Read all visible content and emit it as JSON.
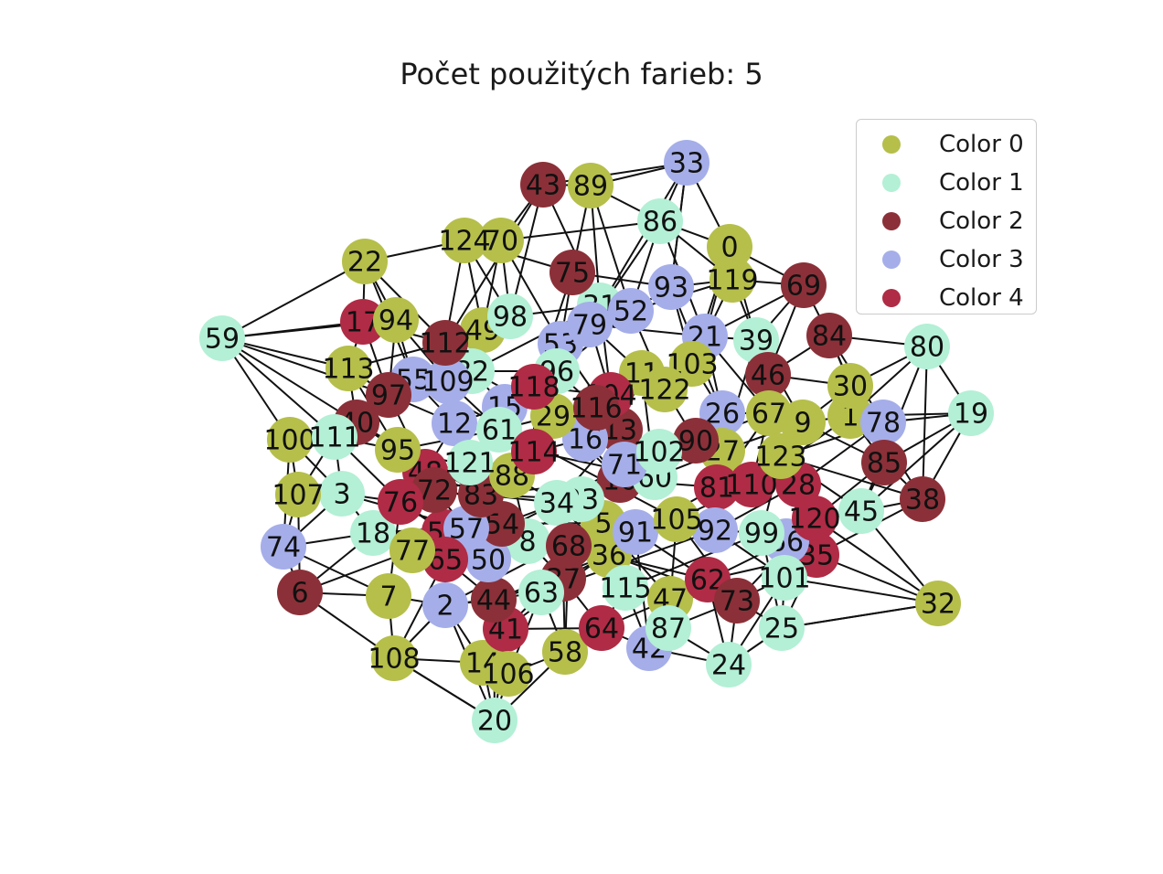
{
  "title": "Počet použitých farieb: 5",
  "palette": [
    "#b5bf4a",
    "#b3f0d6",
    "#8b3038",
    "#a5aee9",
    "#b02b45"
  ],
  "legend": [
    {
      "label": "Color 0",
      "color": 0
    },
    {
      "label": "Color 1",
      "color": 1
    },
    {
      "label": "Color 2",
      "color": 2
    },
    {
      "label": "Color 3",
      "color": 3
    },
    {
      "label": "Color 4",
      "color": 4
    }
  ],
  "nodes": [
    {
      "id": "0",
      "c": 0
    },
    {
      "id": "1",
      "c": 0
    },
    {
      "id": "2",
      "c": 3
    },
    {
      "id": "3",
      "c": 1
    },
    {
      "id": "5",
      "c": 0
    },
    {
      "id": "6",
      "c": 2
    },
    {
      "id": "7",
      "c": 0
    },
    {
      "id": "8",
      "c": 1
    },
    {
      "id": "9",
      "c": 0
    },
    {
      "id": "10",
      "c": 2
    },
    {
      "id": "11",
      "c": 0
    },
    {
      "id": "12",
      "c": 3
    },
    {
      "id": "13",
      "c": 2
    },
    {
      "id": "14",
      "c": 0
    },
    {
      "id": "15",
      "c": 3
    },
    {
      "id": "16",
      "c": 3
    },
    {
      "id": "17",
      "c": 4
    },
    {
      "id": "18",
      "c": 1
    },
    {
      "id": "19",
      "c": 1
    },
    {
      "id": "20",
      "c": 1
    },
    {
      "id": "21",
      "c": 3
    },
    {
      "id": "22",
      "c": 0
    },
    {
      "id": "23",
      "c": 1
    },
    {
      "id": "24",
      "c": 1
    },
    {
      "id": "25",
      "c": 1
    },
    {
      "id": "26",
      "c": 3
    },
    {
      "id": "27",
      "c": 0
    },
    {
      "id": "28",
      "c": 4
    },
    {
      "id": "29",
      "c": 0
    },
    {
      "id": "30",
      "c": 0
    },
    {
      "id": "31",
      "c": 1
    },
    {
      "id": "32",
      "c": 0
    },
    {
      "id": "33",
      "c": 3
    },
    {
      "id": "34",
      "c": 1
    },
    {
      "id": "35",
      "c": 4
    },
    {
      "id": "36",
      "c": 0
    },
    {
      "id": "37",
      "c": 2
    },
    {
      "id": "38",
      "c": 2
    },
    {
      "id": "39",
      "c": 1
    },
    {
      "id": "40",
      "c": 2
    },
    {
      "id": "41",
      "c": 4
    },
    {
      "id": "42",
      "c": 3
    },
    {
      "id": "43",
      "c": 2
    },
    {
      "id": "44",
      "c": 2
    },
    {
      "id": "45",
      "c": 1
    },
    {
      "id": "46",
      "c": 2
    },
    {
      "id": "47",
      "c": 0
    },
    {
      "id": "48",
      "c": 4
    },
    {
      "id": "49",
      "c": 0
    },
    {
      "id": "50",
      "c": 3
    },
    {
      "id": "52",
      "c": 3
    },
    {
      "id": "53",
      "c": 3
    },
    {
      "id": "54",
      "c": 2
    },
    {
      "id": "55",
      "c": 3
    },
    {
      "id": "56",
      "c": 4
    },
    {
      "id": "57",
      "c": 3
    },
    {
      "id": "58",
      "c": 0
    },
    {
      "id": "59",
      "c": 1
    },
    {
      "id": "60",
      "c": 1
    },
    {
      "id": "61",
      "c": 1
    },
    {
      "id": "62",
      "c": 4
    },
    {
      "id": "63",
      "c": 1
    },
    {
      "id": "64",
      "c": 4
    },
    {
      "id": "65",
      "c": 4
    },
    {
      "id": "66",
      "c": 3
    },
    {
      "id": "67",
      "c": 0
    },
    {
      "id": "68",
      "c": 2
    },
    {
      "id": "69",
      "c": 2
    },
    {
      "id": "70",
      "c": 0
    },
    {
      "id": "71",
      "c": 3
    },
    {
      "id": "72",
      "c": 2
    },
    {
      "id": "73",
      "c": 2
    },
    {
      "id": "74",
      "c": 3
    },
    {
      "id": "75",
      "c": 2
    },
    {
      "id": "76",
      "c": 4
    },
    {
      "id": "77",
      "c": 0
    },
    {
      "id": "78",
      "c": 3
    },
    {
      "id": "79",
      "c": 3
    },
    {
      "id": "80",
      "c": 1
    },
    {
      "id": "81",
      "c": 4
    },
    {
      "id": "82",
      "c": 1
    },
    {
      "id": "83",
      "c": 2
    },
    {
      "id": "84",
      "c": 2
    },
    {
      "id": "85",
      "c": 2
    },
    {
      "id": "86",
      "c": 1
    },
    {
      "id": "87",
      "c": 1
    },
    {
      "id": "88",
      "c": 0
    },
    {
      "id": "89",
      "c": 0
    },
    {
      "id": "90",
      "c": 2
    },
    {
      "id": "91",
      "c": 3
    },
    {
      "id": "92",
      "c": 3
    },
    {
      "id": "93",
      "c": 3
    },
    {
      "id": "94",
      "c": 0
    },
    {
      "id": "95",
      "c": 0
    },
    {
      "id": "96",
      "c": 1
    },
    {
      "id": "97",
      "c": 2
    },
    {
      "id": "98",
      "c": 1
    },
    {
      "id": "99",
      "c": 1
    },
    {
      "id": "100",
      "c": 0
    },
    {
      "id": "101",
      "c": 1
    },
    {
      "id": "102",
      "c": 1
    },
    {
      "id": "103",
      "c": 0
    },
    {
      "id": "104",
      "c": 4
    },
    {
      "id": "105",
      "c": 0
    },
    {
      "id": "106",
      "c": 0
    },
    {
      "id": "107",
      "c": 0
    },
    {
      "id": "108",
      "c": 0
    },
    {
      "id": "109",
      "c": 3
    },
    {
      "id": "110",
      "c": 4
    },
    {
      "id": "111",
      "c": 1
    },
    {
      "id": "112",
      "c": 2
    },
    {
      "id": "113",
      "c": 0
    },
    {
      "id": "114",
      "c": 4
    },
    {
      "id": "115",
      "c": 1
    },
    {
      "id": "116",
      "c": 2
    },
    {
      "id": "118",
      "c": 4
    },
    {
      "id": "119",
      "c": 0
    },
    {
      "id": "120",
      "c": 4
    },
    {
      "id": "121",
      "c": 1
    },
    {
      "id": "122",
      "c": 0
    },
    {
      "id": "123",
      "c": 0
    },
    {
      "id": "124",
      "c": 0
    }
  ],
  "edges": [
    [
      "59",
      "17"
    ],
    [
      "59",
      "113"
    ],
    [
      "59",
      "40"
    ],
    [
      "59",
      "111"
    ],
    [
      "59",
      "22"
    ],
    [
      "59",
      "94"
    ],
    [
      "59",
      "97"
    ],
    [
      "100",
      "111"
    ],
    [
      "100",
      "107"
    ],
    [
      "100",
      "3"
    ],
    [
      "107",
      "74"
    ],
    [
      "107",
      "3"
    ],
    [
      "74",
      "18"
    ],
    [
      "74",
      "6"
    ],
    [
      "74",
      "3"
    ],
    [
      "6",
      "7"
    ],
    [
      "6",
      "108"
    ],
    [
      "6",
      "18"
    ],
    [
      "7",
      "108"
    ],
    [
      "7",
      "2"
    ],
    [
      "108",
      "14"
    ],
    [
      "108",
      "20"
    ],
    [
      "108",
      "2"
    ],
    [
      "20",
      "106"
    ],
    [
      "20",
      "14"
    ],
    [
      "20",
      "58"
    ],
    [
      "20",
      "41"
    ],
    [
      "20",
      "44"
    ],
    [
      "14",
      "106"
    ],
    [
      "106",
      "58"
    ],
    [
      "58",
      "64"
    ],
    [
      "64",
      "42"
    ],
    [
      "42",
      "87"
    ],
    [
      "42",
      "24"
    ],
    [
      "87",
      "24"
    ],
    [
      "24",
      "25"
    ],
    [
      "25",
      "101"
    ],
    [
      "25",
      "32"
    ],
    [
      "101",
      "32"
    ],
    [
      "32",
      "45"
    ],
    [
      "32",
      "35"
    ],
    [
      "32",
      "120"
    ],
    [
      "45",
      "38"
    ],
    [
      "45",
      "19"
    ],
    [
      "38",
      "85"
    ],
    [
      "38",
      "19"
    ],
    [
      "19",
      "80"
    ],
    [
      "19",
      "78"
    ],
    [
      "19",
      "1"
    ],
    [
      "80",
      "84"
    ],
    [
      "80",
      "30"
    ],
    [
      "80",
      "1"
    ],
    [
      "69",
      "84"
    ],
    [
      "69",
      "119"
    ],
    [
      "69",
      "0"
    ],
    [
      "0",
      "33"
    ],
    [
      "0",
      "86"
    ],
    [
      "33",
      "89"
    ],
    [
      "33",
      "86"
    ],
    [
      "33",
      "93"
    ],
    [
      "33",
      "43"
    ],
    [
      "89",
      "43"
    ],
    [
      "89",
      "86"
    ],
    [
      "43",
      "70"
    ],
    [
      "70",
      "124"
    ],
    [
      "124",
      "22"
    ],
    [
      "124",
      "75"
    ],
    [
      "22",
      "94"
    ],
    [
      "22",
      "17"
    ],
    [
      "86",
      "119"
    ],
    [
      "86",
      "70"
    ],
    [
      "93",
      "119"
    ],
    [
      "93",
      "52"
    ],
    [
      "52",
      "31"
    ],
    [
      "31",
      "98"
    ],
    [
      "98",
      "49"
    ],
    [
      "49",
      "112"
    ],
    [
      "112",
      "17"
    ],
    [
      "112",
      "113"
    ],
    [
      "94",
      "55"
    ],
    [
      "55",
      "109"
    ],
    [
      "109",
      "82"
    ],
    [
      "82",
      "96"
    ],
    [
      "96",
      "53"
    ],
    [
      "53",
      "79"
    ],
    [
      "79",
      "21"
    ],
    [
      "21",
      "39"
    ],
    [
      "39",
      "46"
    ],
    [
      "46",
      "84"
    ],
    [
      "46",
      "30"
    ],
    [
      "30",
      "78"
    ],
    [
      "78",
      "85"
    ],
    [
      "85",
      "9"
    ],
    [
      "9",
      "67"
    ],
    [
      "67",
      "26"
    ],
    [
      "26",
      "103"
    ],
    [
      "103",
      "11"
    ],
    [
      "11",
      "122"
    ],
    [
      "122",
      "104"
    ],
    [
      "104",
      "118"
    ],
    [
      "118",
      "15"
    ],
    [
      "15",
      "12"
    ],
    [
      "12",
      "97"
    ],
    [
      "97",
      "40"
    ],
    [
      "40",
      "111"
    ],
    [
      "111",
      "3"
    ],
    [
      "3",
      "18"
    ],
    [
      "18",
      "77"
    ],
    [
      "77",
      "65"
    ],
    [
      "65",
      "2"
    ],
    [
      "2",
      "44"
    ],
    [
      "44",
      "41"
    ],
    [
      "41",
      "63"
    ],
    [
      "63",
      "37"
    ],
    [
      "37",
      "68"
    ],
    [
      "68",
      "36"
    ],
    [
      "36",
      "115"
    ],
    [
      "115",
      "47"
    ],
    [
      "47",
      "87"
    ],
    [
      "47",
      "62"
    ],
    [
      "62",
      "73"
    ],
    [
      "73",
      "101"
    ],
    [
      "73",
      "25"
    ],
    [
      "99",
      "66"
    ],
    [
      "66",
      "35"
    ],
    [
      "35",
      "120"
    ],
    [
      "120",
      "28"
    ],
    [
      "28",
      "110"
    ],
    [
      "110",
      "81"
    ],
    [
      "81",
      "27"
    ],
    [
      "27",
      "90"
    ],
    [
      "90",
      "102"
    ],
    [
      "102",
      "60"
    ],
    [
      "60",
      "71"
    ],
    [
      "71",
      "10"
    ],
    [
      "10",
      "16"
    ],
    [
      "16",
      "114"
    ],
    [
      "114",
      "88"
    ],
    [
      "88",
      "121"
    ],
    [
      "121",
      "48"
    ],
    [
      "48",
      "72"
    ],
    [
      "72",
      "76"
    ],
    [
      "76",
      "56"
    ],
    [
      "56",
      "57"
    ],
    [
      "57",
      "50"
    ],
    [
      "50",
      "8"
    ],
    [
      "8",
      "54"
    ],
    [
      "54",
      "83"
    ],
    [
      "83",
      "34"
    ],
    [
      "34",
      "23"
    ],
    [
      "23",
      "5"
    ],
    [
      "5",
      "91"
    ],
    [
      "91",
      "105"
    ],
    [
      "105",
      "55"
    ],
    [
      "105",
      "92"
    ],
    [
      "92",
      "99"
    ],
    [
      "99",
      "123"
    ],
    [
      "123",
      "45"
    ],
    [
      "113",
      "95"
    ],
    [
      "95",
      "61"
    ],
    [
      "61",
      "29"
    ],
    [
      "29",
      "116"
    ],
    [
      "116",
      "13"
    ],
    [
      "13",
      "11"
    ],
    [
      "13",
      "102"
    ],
    [
      "75",
      "93"
    ],
    [
      "75",
      "31"
    ],
    [
      "75",
      "53"
    ],
    [
      "86",
      "52"
    ],
    [
      "89",
      "75"
    ],
    [
      "43",
      "98"
    ],
    [
      "70",
      "49"
    ],
    [
      "124",
      "98"
    ],
    [
      "0",
      "21"
    ],
    [
      "119",
      "103"
    ],
    [
      "69",
      "46"
    ],
    [
      "84",
      "30"
    ],
    [
      "1",
      "9"
    ],
    [
      "1",
      "85"
    ],
    [
      "9",
      "123"
    ],
    [
      "67",
      "110"
    ],
    [
      "26",
      "90"
    ],
    [
      "21",
      "67"
    ],
    [
      "39",
      "9"
    ],
    [
      "46",
      "67"
    ],
    [
      "103",
      "122"
    ],
    [
      "11",
      "16"
    ],
    [
      "29",
      "104"
    ],
    [
      "118",
      "96"
    ],
    [
      "15",
      "61"
    ],
    [
      "12",
      "109"
    ],
    [
      "97",
      "55"
    ],
    [
      "40",
      "95"
    ],
    [
      "111",
      "95"
    ],
    [
      "3",
      "76"
    ],
    [
      "18",
      "56"
    ],
    [
      "77",
      "50"
    ],
    [
      "65",
      "44"
    ],
    [
      "2",
      "63"
    ],
    [
      "44",
      "37"
    ],
    [
      "41",
      "64"
    ],
    [
      "63",
      "58"
    ],
    [
      "37",
      "64"
    ],
    [
      "68",
      "115"
    ],
    [
      "36",
      "91"
    ],
    [
      "115",
      "42"
    ],
    [
      "47",
      "42"
    ],
    [
      "62",
      "24"
    ],
    [
      "73",
      "24"
    ],
    [
      "101",
      "66"
    ],
    [
      "25",
      "35"
    ],
    [
      "45",
      "120"
    ],
    [
      "38",
      "123"
    ],
    [
      "85",
      "45"
    ],
    [
      "78",
      "1"
    ],
    [
      "30",
      "9"
    ],
    [
      "80",
      "45"
    ],
    [
      "32",
      "25"
    ],
    [
      "20",
      "108"
    ],
    [
      "14",
      "41"
    ],
    [
      "106",
      "63"
    ],
    [
      "58",
      "68"
    ],
    [
      "64",
      "115"
    ],
    [
      "42",
      "91"
    ],
    [
      "87",
      "105"
    ],
    [
      "24",
      "101"
    ],
    [
      "6",
      "77"
    ],
    [
      "7",
      "76"
    ],
    [
      "108",
      "65"
    ],
    [
      "74",
      "100"
    ],
    [
      "107",
      "111"
    ],
    [
      "100",
      "40"
    ],
    [
      "59",
      "100"
    ],
    [
      "17",
      "113"
    ],
    [
      "113",
      "97"
    ],
    [
      "94",
      "109"
    ],
    [
      "22",
      "112"
    ],
    [
      "124",
      "112"
    ],
    [
      "70",
      "53"
    ],
    [
      "43",
      "31"
    ],
    [
      "89",
      "52"
    ],
    [
      "33",
      "79"
    ],
    [
      "86",
      "21"
    ],
    [
      "93",
      "103"
    ],
    [
      "52",
      "96"
    ],
    [
      "31",
      "82"
    ],
    [
      "98",
      "109"
    ],
    [
      "49",
      "55"
    ],
    [
      "112",
      "12"
    ],
    [
      "82",
      "15"
    ],
    [
      "96",
      "29"
    ],
    [
      "53",
      "118"
    ],
    [
      "79",
      "104"
    ],
    [
      "21",
      "26"
    ],
    [
      "39",
      "27"
    ],
    [
      "46",
      "28"
    ],
    [
      "84",
      "85"
    ],
    [
      "30",
      "38"
    ],
    [
      "78",
      "123"
    ],
    [
      "9",
      "110"
    ],
    [
      "67",
      "81"
    ],
    [
      "26",
      "102"
    ],
    [
      "103",
      "116"
    ],
    [
      "11",
      "60"
    ],
    [
      "122",
      "90"
    ],
    [
      "104",
      "16"
    ],
    [
      "118",
      "114"
    ],
    [
      "15",
      "121"
    ],
    [
      "12",
      "48"
    ],
    [
      "97",
      "72"
    ],
    [
      "40",
      "83"
    ],
    [
      "111",
      "76"
    ],
    [
      "3",
      "57"
    ],
    [
      "18",
      "54"
    ],
    [
      "77",
      "8"
    ],
    [
      "65",
      "34"
    ],
    [
      "2",
      "5"
    ],
    [
      "44",
      "36"
    ],
    [
      "41",
      "91"
    ],
    [
      "63",
      "92"
    ],
    [
      "37",
      "105"
    ],
    [
      "68",
      "62"
    ],
    [
      "36",
      "73"
    ],
    [
      "115",
      "99"
    ],
    [
      "47",
      "66"
    ],
    [
      "62",
      "35"
    ],
    [
      "73",
      "120"
    ],
    [
      "95",
      "88"
    ],
    [
      "61",
      "114"
    ],
    [
      "29",
      "10"
    ],
    [
      "116",
      "71"
    ],
    [
      "13",
      "34"
    ],
    [
      "57",
      "121"
    ],
    [
      "50",
      "23"
    ],
    [
      "8",
      "88"
    ],
    [
      "54",
      "10"
    ],
    [
      "83",
      "60"
    ],
    [
      "34",
      "71"
    ],
    [
      "23",
      "91"
    ],
    [
      "5",
      "105"
    ],
    [
      "91",
      "81"
    ],
    [
      "105",
      "110"
    ],
    [
      "92",
      "28"
    ],
    [
      "99",
      "45"
    ],
    [
      "55",
      "12"
    ],
    [
      "109",
      "61"
    ],
    [
      "82",
      "29"
    ],
    [
      "96",
      "116"
    ],
    [
      "53",
      "13"
    ],
    [
      "79",
      "11"
    ],
    [
      "52",
      "122"
    ],
    [
      "31",
      "104"
    ],
    [
      "75",
      "118"
    ],
    [
      "93",
      "26"
    ],
    [
      "119",
      "39"
    ],
    [
      "0",
      "103"
    ],
    [
      "69",
      "39"
    ],
    [
      "14",
      "2"
    ],
    [
      "106",
      "44"
    ],
    [
      "20",
      "2"
    ],
    [
      "58",
      "37"
    ],
    [
      "64",
      "47"
    ],
    [
      "42",
      "62"
    ],
    [
      "87",
      "73"
    ],
    [
      "25",
      "99"
    ],
    [
      "101",
      "120"
    ],
    [
      "35",
      "38"
    ],
    [
      "120",
      "85"
    ],
    [
      "28",
      "78"
    ],
    [
      "110",
      "1"
    ],
    [
      "81",
      "123"
    ],
    [
      "27",
      "9"
    ],
    [
      "90",
      "67"
    ],
    [
      "102",
      "26"
    ],
    [
      "60",
      "27"
    ],
    [
      "71",
      "90"
    ],
    [
      "10",
      "81"
    ],
    [
      "16",
      "102"
    ],
    [
      "114",
      "60"
    ],
    [
      "88",
      "34"
    ],
    [
      "121",
      "83"
    ],
    [
      "48",
      "54"
    ],
    [
      "72",
      "57"
    ],
    [
      "76",
      "50"
    ],
    [
      "56",
      "65"
    ],
    [
      "57",
      "8"
    ],
    [
      "50",
      "68"
    ],
    [
      "8",
      "37"
    ],
    [
      "54",
      "5"
    ],
    [
      "83",
      "23"
    ],
    [
      "34",
      "36"
    ],
    [
      "23",
      "115"
    ],
    [
      "5",
      "47"
    ],
    [
      "91",
      "62"
    ],
    [
      "105",
      "73"
    ],
    [
      "92",
      "101"
    ],
    [
      "99",
      "35"
    ],
    [
      "123",
      "28"
    ],
    [
      "48",
      "83"
    ],
    [
      "72",
      "88"
    ],
    [
      "76",
      "72"
    ],
    [
      "107",
      "6"
    ],
    [
      "74",
      "7"
    ],
    [
      "113",
      "40"
    ],
    [
      "94",
      "97"
    ],
    [
      "22",
      "55"
    ],
    [
      "17",
      "97"
    ],
    [
      "124",
      "49"
    ],
    [
      "70",
      "98"
    ],
    [
      "43",
      "112"
    ],
    [
      "89",
      "31"
    ],
    [
      "33",
      "93"
    ],
    [
      "86",
      "79"
    ],
    [
      "119",
      "52"
    ],
    [
      "69",
      "21"
    ],
    [
      "0",
      "39"
    ],
    [
      "84",
      "78"
    ],
    [
      "80",
      "38"
    ],
    [
      "19",
      "85"
    ]
  ]
}
